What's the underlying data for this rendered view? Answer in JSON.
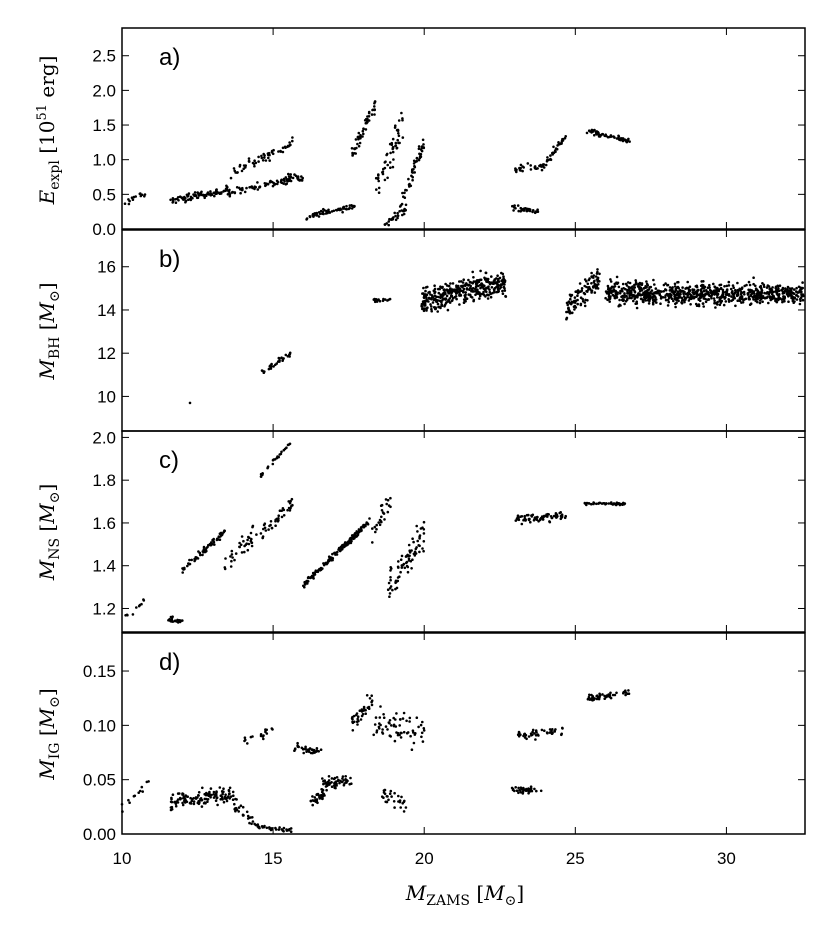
{
  "chart_data": [
    {
      "type": "scatter",
      "panel_label": "a)",
      "ylabel": "E_expl [10^51 erg]",
      "ylim": [
        0.0,
        2.9
      ],
      "yticks": [
        "0.0",
        "0.5",
        "1.0",
        "1.5",
        "2.0",
        "2.5"
      ],
      "segments": [
        {
          "x0": 10.0,
          "x1": 10.9,
          "y0": 0.35,
          "y1": 0.55,
          "n": 14,
          "spread": 0.05
        },
        {
          "x0": 11.6,
          "x1": 13.5,
          "y0": 0.4,
          "y1": 0.57,
          "n": 90,
          "spread": 0.05
        },
        {
          "x0": 13.5,
          "x1": 15.6,
          "y0": 0.52,
          "y1": 0.72,
          "n": 70,
          "spread": 0.05
        },
        {
          "x0": 13.6,
          "x1": 15.7,
          "y0": 0.8,
          "y1": 1.25,
          "n": 55,
          "spread": 0.08
        },
        {
          "x0": 15.5,
          "x1": 16.0,
          "y0": 0.78,
          "y1": 0.72,
          "n": 20,
          "spread": 0.05
        },
        {
          "x0": 16.1,
          "x1": 17.7,
          "y0": 0.18,
          "y1": 0.33,
          "n": 60,
          "spread": 0.04
        },
        {
          "x0": 17.6,
          "x1": 18.4,
          "y0": 1.05,
          "y1": 1.85,
          "n": 50,
          "spread": 0.12
        },
        {
          "x0": 18.4,
          "x1": 19.3,
          "y0": 0.6,
          "y1": 1.5,
          "n": 55,
          "spread": 0.25
        },
        {
          "x0": 18.7,
          "x1": 19.4,
          "y0": 0.05,
          "y1": 0.3,
          "n": 30,
          "spread": 0.06
        },
        {
          "x0": 19.2,
          "x1": 20.0,
          "y0": 0.3,
          "y1": 1.25,
          "n": 50,
          "spread": 0.12
        },
        {
          "x0": 22.9,
          "x1": 23.8,
          "y0": 0.3,
          "y1": 0.25,
          "n": 35,
          "spread": 0.04
        },
        {
          "x0": 23.0,
          "x1": 24.0,
          "y0": 0.85,
          "y1": 0.9,
          "n": 30,
          "spread": 0.06
        },
        {
          "x0": 24.0,
          "x1": 24.7,
          "y0": 0.95,
          "y1": 1.35,
          "n": 30,
          "spread": 0.06
        },
        {
          "x0": 25.3,
          "x1": 26.8,
          "y0": 1.42,
          "y1": 1.28,
          "n": 55,
          "spread": 0.04
        }
      ]
    },
    {
      "type": "scatter",
      "panel_label": "b)",
      "ylabel": "M_BH [M_⊙]",
      "ylim": [
        8.4,
        17.7
      ],
      "yticks": [
        "10",
        "12",
        "14",
        "16"
      ],
      "segments": [
        {
          "x0": 12.2,
          "x1": 12.3,
          "y0": 9.7,
          "y1": 9.7,
          "n": 1,
          "spread": 0.0
        },
        {
          "x0": 14.6,
          "x1": 15.6,
          "y0": 11.1,
          "y1": 12.0,
          "n": 30,
          "spread": 0.12
        },
        {
          "x0": 18.3,
          "x1": 18.9,
          "y0": 14.45,
          "y1": 14.45,
          "n": 15,
          "spread": 0.1
        },
        {
          "x0": 19.9,
          "x1": 22.7,
          "y0": 14.4,
          "y1": 15.3,
          "n": 380,
          "spread": 0.55
        },
        {
          "x0": 24.7,
          "x1": 25.8,
          "y0": 14.0,
          "y1": 15.5,
          "n": 110,
          "spread": 0.55
        },
        {
          "x0": 26.0,
          "x1": 32.6,
          "y0": 14.8,
          "y1": 14.7,
          "n": 820,
          "spread": 0.5
        }
      ]
    },
    {
      "type": "scatter",
      "panel_label": "c)",
      "ylabel": "M_NS [M_⊙]",
      "ylim": [
        1.09,
        2.03
      ],
      "yticks": [
        "1.2",
        "1.4",
        "1.6",
        "1.8",
        "2.0"
      ],
      "segments": [
        {
          "x0": 10.0,
          "x1": 10.8,
          "y0": 1.15,
          "y1": 1.25,
          "n": 10,
          "spread": 0.02
        },
        {
          "x0": 11.5,
          "x1": 12.0,
          "y0": 1.15,
          "y1": 1.14,
          "n": 22,
          "spread": 0.015
        },
        {
          "x0": 12.0,
          "x1": 13.4,
          "y0": 1.38,
          "y1": 1.56,
          "n": 70,
          "spread": 0.015
        },
        {
          "x0": 13.4,
          "x1": 15.7,
          "y0": 1.42,
          "y1": 1.69,
          "n": 75,
          "spread": 0.04
        },
        {
          "x0": 14.6,
          "x1": 15.6,
          "y0": 1.82,
          "y1": 1.98,
          "n": 25,
          "spread": 0.01
        },
        {
          "x0": 16.0,
          "x1": 18.2,
          "y0": 1.31,
          "y1": 1.61,
          "n": 150,
          "spread": 0.015
        },
        {
          "x0": 18.2,
          "x1": 18.9,
          "y0": 1.55,
          "y1": 1.7,
          "n": 25,
          "spread": 0.05
        },
        {
          "x0": 18.8,
          "x1": 20.0,
          "y0": 1.3,
          "y1": 1.55,
          "n": 80,
          "spread": 0.08
        },
        {
          "x0": 23.0,
          "x1": 24.7,
          "y0": 1.62,
          "y1": 1.63,
          "n": 75,
          "spread": 0.02
        },
        {
          "x0": 25.3,
          "x1": 26.8,
          "y0": 1.69,
          "y1": 1.69,
          "n": 45,
          "spread": 0.006
        }
      ]
    },
    {
      "type": "scatter",
      "panel_label": "d)",
      "ylabel": "M_IG [M_⊙]",
      "ylim": [
        0.0,
        0.185
      ],
      "yticks": [
        "0.00",
        "0.05",
        "0.10",
        "0.15"
      ],
      "segments": [
        {
          "x0": 10.0,
          "x1": 10.9,
          "y0": 0.022,
          "y1": 0.048,
          "n": 12,
          "spread": 0.006
        },
        {
          "x0": 11.6,
          "x1": 13.7,
          "y0": 0.03,
          "y1": 0.036,
          "n": 130,
          "spread": 0.007
        },
        {
          "x0": 13.7,
          "x1": 14.4,
          "y0": 0.028,
          "y1": 0.01,
          "n": 25,
          "spread": 0.007
        },
        {
          "x0": 14.4,
          "x1": 15.6,
          "y0": 0.008,
          "y1": 0.003,
          "n": 35,
          "spread": 0.002
        },
        {
          "x0": 14.0,
          "x1": 15.0,
          "y0": 0.085,
          "y1": 0.095,
          "n": 18,
          "spread": 0.004
        },
        {
          "x0": 15.7,
          "x1": 16.6,
          "y0": 0.08,
          "y1": 0.075,
          "n": 35,
          "spread": 0.004
        },
        {
          "x0": 16.2,
          "x1": 16.7,
          "y0": 0.032,
          "y1": 0.036,
          "n": 30,
          "spread": 0.005
        },
        {
          "x0": 16.6,
          "x1": 17.6,
          "y0": 0.045,
          "y1": 0.05,
          "n": 60,
          "spread": 0.007
        },
        {
          "x0": 17.6,
          "x1": 18.3,
          "y0": 0.1,
          "y1": 0.125,
          "n": 35,
          "spread": 0.008
        },
        {
          "x0": 18.3,
          "x1": 20.0,
          "y0": 0.1,
          "y1": 0.095,
          "n": 65,
          "spread": 0.016
        },
        {
          "x0": 18.6,
          "x1": 19.4,
          "y0": 0.035,
          "y1": 0.03,
          "n": 30,
          "spread": 0.008
        },
        {
          "x0": 22.9,
          "x1": 23.9,
          "y0": 0.041,
          "y1": 0.04,
          "n": 35,
          "spread": 0.003
        },
        {
          "x0": 23.1,
          "x1": 24.6,
          "y0": 0.09,
          "y1": 0.095,
          "n": 45,
          "spread": 0.004
        },
        {
          "x0": 25.4,
          "x1": 26.8,
          "y0": 0.125,
          "y1": 0.13,
          "n": 50,
          "spread": 0.003
        }
      ]
    }
  ],
  "x_axis": {
    "label": "M_ZAMS [M_⊙]",
    "xlim": [
      10,
      32.6
    ],
    "ticks": [
      "10",
      "15",
      "20",
      "25",
      "30"
    ]
  }
}
